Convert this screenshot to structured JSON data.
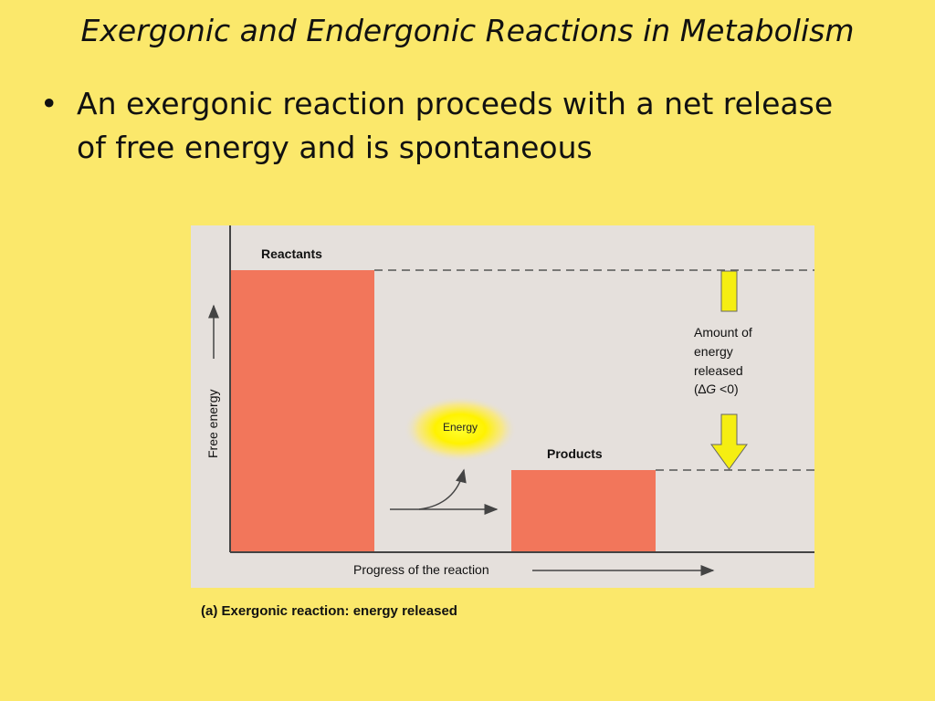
{
  "slide": {
    "title": "Exergonic and Endergonic Reactions in Metabolism",
    "bullet": "An exergonic reaction proceeds with a net release of free energy and is spontaneous"
  },
  "diagram": {
    "reactants_label": "Reactants",
    "products_label": "Products",
    "energy_label": "Energy",
    "y_axis_label": "Free energy",
    "x_axis_label": "Progress of the reaction",
    "release_label_lines": [
      "Amount of",
      "energy",
      "released"
    ],
    "delta_g_symbol": "∆",
    "delta_g_var": "G",
    "delta_g_rest": " <0)",
    "delta_g_open": "(",
    "caption": "(a) Exergonic reaction: energy released",
    "colors": {
      "panel": "#e5e0dc",
      "bar": "#f2765b",
      "arrow_yellow": "#f5ee12",
      "glow": "#ffe800",
      "axis": "#444444"
    }
  }
}
